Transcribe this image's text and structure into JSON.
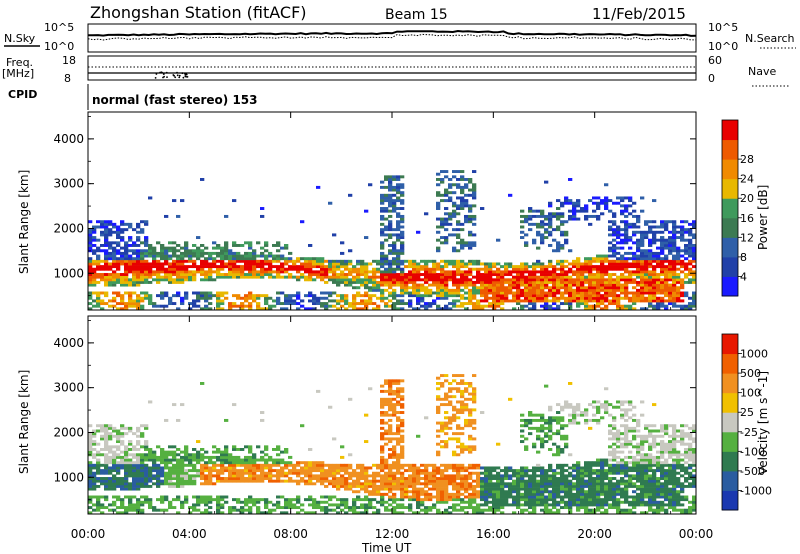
{
  "header": {
    "station": "Zhongshan Station (fitACF)",
    "beam": "Beam 15",
    "date": "11/Feb/2015"
  },
  "top_panels": {
    "nsky_label": "N.Sky",
    "nsky_ticks": [
      "10^5",
      "10^0"
    ],
    "nsearch_ticks": [
      "10^5",
      "10^0"
    ],
    "nsearch_label": "N.Search",
    "freq_label_1": "Freq.",
    "freq_label_2": "[MHz]",
    "freq_ticks": [
      "18",
      "8"
    ],
    "nave_ticks": [
      "60",
      "0"
    ],
    "nave_label": "Nave",
    "cpid_label": "CPID",
    "cpid_value": "normal (fast stereo) 153"
  },
  "colors": {
    "power": [
      "#1a1aff",
      "#2040a8",
      "#2f5fa8",
      "#3c7a52",
      "#3f9a5c",
      "#e8b800",
      "#f08a00",
      "#ee5a00",
      "#e80000"
    ],
    "velocity": [
      "#1a38b0",
      "#2a5ca0",
      "#2f7a50",
      "#55b040",
      "#c8c8c0",
      "#f0c000",
      "#f09020",
      "#f06000",
      "#e81800"
    ]
  },
  "chart_data": [
    {
      "type": "heatmap",
      "name": "power",
      "ylabel": "Slant Range [km]",
      "xlabel": "",
      "x_ticks": [
        "00:00",
        "04:00",
        "08:00",
        "12:00",
        "16:00",
        "20:00",
        "00:00"
      ],
      "y_ticks": [
        "1000",
        "2000",
        "3000",
        "4000"
      ],
      "ylim": [
        180,
        4600
      ],
      "xlim": [
        0,
        24
      ],
      "colorbar_label": "Power [dB]",
      "colorbar_ticks": [
        "4",
        "8",
        "12",
        "16",
        "20",
        "24",
        "28"
      ],
      "colorbar_range": [
        0,
        32
      ]
    },
    {
      "type": "heatmap",
      "name": "velocity",
      "ylabel": "Slant Range [km]",
      "xlabel": "Time UT",
      "x_ticks": [
        "00:00",
        "04:00",
        "08:00",
        "12:00",
        "16:00",
        "20:00",
        "00:00"
      ],
      "y_ticks": [
        "1000",
        "2000",
        "3000",
        "4000"
      ],
      "ylim": [
        180,
        4600
      ],
      "xlim": [
        0,
        24
      ],
      "colorbar_label": "Velocity [m s^-1]",
      "colorbar_ticks": [
        "1000",
        "500",
        "100",
        "25",
        "-25",
        "-100",
        "-500",
        "-1000"
      ]
    }
  ]
}
